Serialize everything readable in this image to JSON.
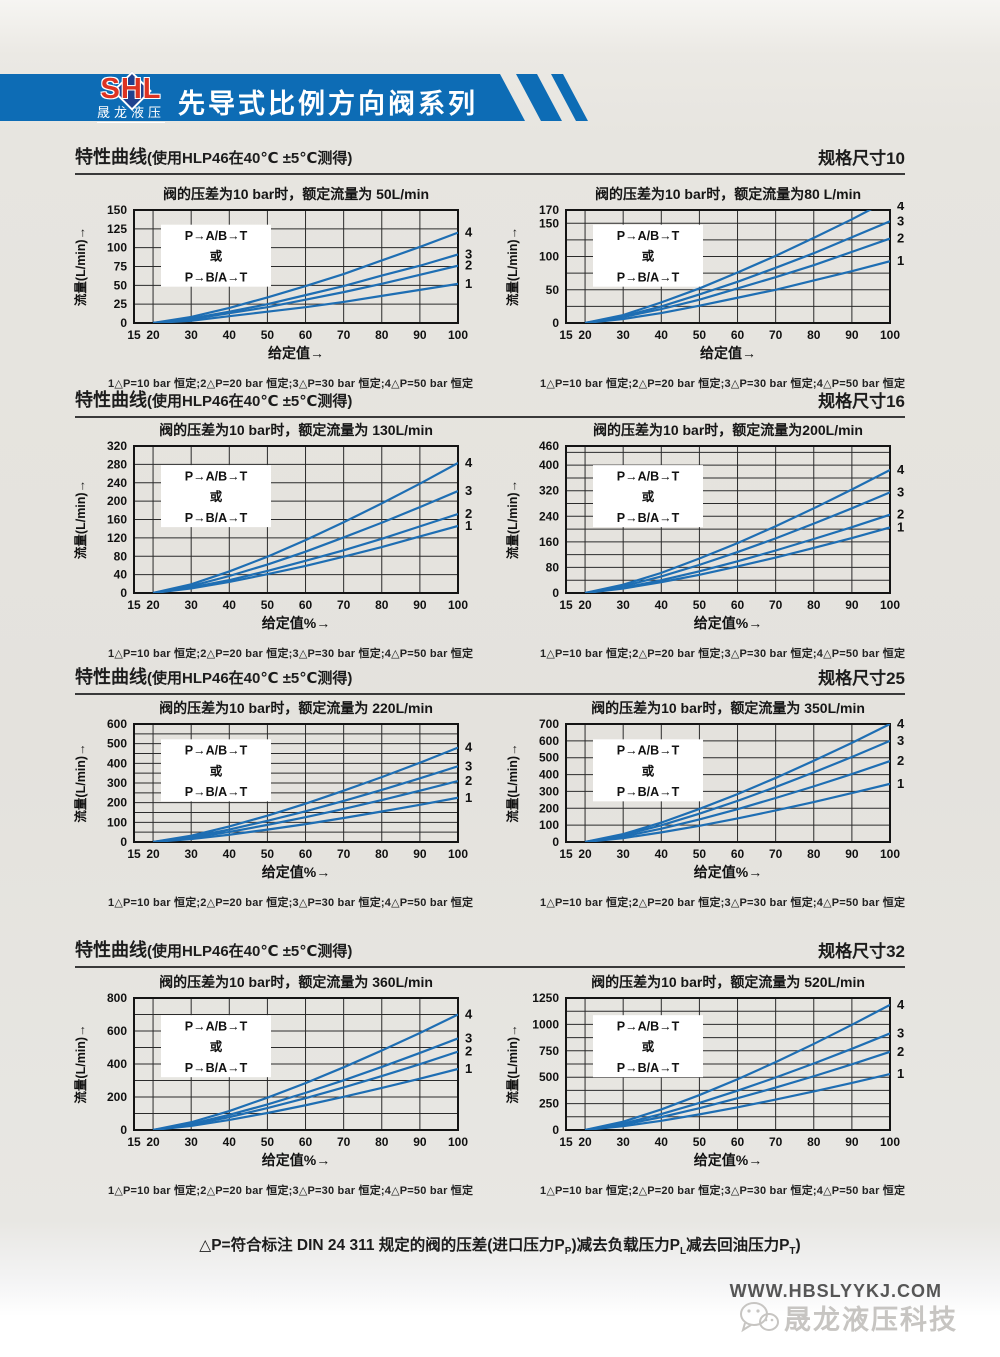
{
  "colors": {
    "banner_blue": "#0d6cb5",
    "logo_red": "#dd3322",
    "logo_diamond_blue": "#20418e",
    "curve_blue": "#1e6eb3",
    "ink": "#1c1c1c"
  },
  "header": {
    "logo_text": "SHL",
    "logo_subtext": "晟龙液压",
    "title": "先导式比例方向阀系列"
  },
  "sections": [
    {
      "heading": "特性曲线",
      "heading_detail": "(使用HLP46在40℃ ±5℃测得)",
      "size_label": "规格尺寸10"
    },
    {
      "heading": "特性曲线",
      "heading_detail": "(使用HLP46在40℃ ±5℃测得)",
      "size_label": "规格尺寸16"
    },
    {
      "heading": "特性曲线",
      "heading_detail": "(使用HLP46在40℃ ±5℃测得)",
      "size_label": "规格尺寸25"
    },
    {
      "heading": "特性曲线",
      "heading_detail": "(使用HLP46在40℃ ±5℃测得)",
      "size_label": "规格尺寸32"
    }
  ],
  "chart_data": [
    {
      "type": "line",
      "title": "阀的压差为10 bar时，额定流量为 50L/min",
      "xlabel": "给定值→",
      "ylabel": "流量(L/min)→",
      "xlim": [
        15,
        100
      ],
      "ylim": [
        0,
        150
      ],
      "x_ticks": [
        15,
        20,
        30,
        40,
        50,
        60,
        70,
        80,
        90,
        100
      ],
      "y_ticks": [
        0,
        25,
        50,
        75,
        100,
        125,
        150
      ],
      "y_grid": [
        0,
        25,
        50,
        75,
        100,
        125,
        150
      ],
      "grid": true,
      "legend": {
        "lines": [
          "P→A/B→T",
          "或",
          "P→B/A→T"
        ],
        "position": "upper-left"
      },
      "x": [
        20,
        30,
        40,
        50,
        60,
        70,
        80,
        90,
        100
      ],
      "series": [
        {
          "name": "1",
          "label": "△P=10 bar 恒定",
          "values": [
            0,
            3,
            9,
            15,
            21,
            28,
            36,
            44,
            52
          ]
        },
        {
          "name": "2",
          "label": "△P=20 bar 恒定",
          "values": [
            0,
            5,
            13,
            21,
            31,
            41,
            52,
            64,
            76
          ]
        },
        {
          "name": "3",
          "label": "△P=30 bar 恒定",
          "values": [
            0,
            6,
            15,
            25,
            37,
            49,
            63,
            76,
            91
          ]
        },
        {
          "name": "4",
          "label": "△P=50 bar 恒定",
          "values": [
            0,
            8,
            20,
            34,
            49,
            65,
            83,
            101,
            120
          ]
        }
      ],
      "caption": "1△P=10 bar 恒定;2△P=20 bar 恒定;3△P=30 bar 恒定;4△P=50 bar 恒定"
    },
    {
      "type": "line",
      "title": "阀的压差为10 bar时，额定流量为80 L/min",
      "xlabel": "给定值→",
      "ylabel": "流量(L/min)→",
      "xlim": [
        15,
        100
      ],
      "ylim": [
        0,
        170
      ],
      "x_ticks": [
        15,
        20,
        30,
        40,
        50,
        60,
        70,
        80,
        90,
        100
      ],
      "y_ticks": [
        0,
        50,
        100,
        150,
        170
      ],
      "y_grid": [
        0,
        25,
        50,
        75,
        100,
        125,
        150,
        170
      ],
      "grid": true,
      "legend": {
        "lines": [
          "P→A/B→T",
          "或",
          "P→B/A→T"
        ],
        "position": "upper-left"
      },
      "x": [
        20,
        30,
        40,
        50,
        60,
        70,
        80,
        90,
        100
      ],
      "series": [
        {
          "name": "1",
          "label": "△P=10 bar 恒定",
          "values": [
            0,
            6,
            15,
            26,
            38,
            50,
            64,
            78,
            93
          ]
        },
        {
          "name": "2",
          "label": "△P=20 bar 恒定",
          "values": [
            0,
            9,
            21,
            35,
            52,
            69,
            87,
            107,
            127
          ]
        },
        {
          "name": "3",
          "label": "△P=30 bar 恒定",
          "values": [
            0,
            10,
            25,
            43,
            62,
            83,
            105,
            129,
            153
          ]
        },
        {
          "name": "4",
          "label": "△P=50 bar 恒定",
          "values": [
            0,
            12,
            31,
            52,
            76,
            101,
            128,
            156,
            186
          ]
        }
      ],
      "caption": "1△P=10 bar 恒定;2△P=20 bar 恒定;3△P=30 bar 恒定;4△P=50 bar 恒定"
    },
    {
      "type": "line",
      "title": "阀的压差为10 bar时，额定流量为 130L/min",
      "xlabel": "给定值%→",
      "ylabel": "流量(L/min)→",
      "xlim": [
        15,
        100
      ],
      "ylim": [
        0,
        320
      ],
      "x_ticks": [
        15,
        20,
        30,
        40,
        50,
        60,
        70,
        80,
        90,
        100
      ],
      "y_ticks": [
        0,
        40,
        80,
        120,
        160,
        200,
        240,
        280,
        320
      ],
      "y_grid": [
        0,
        40,
        80,
        120,
        160,
        200,
        240,
        280,
        320
      ],
      "grid": true,
      "legend": {
        "lines": [
          "P→A/B→T",
          "或",
          "P→B/A→T"
        ],
        "position": "upper-left"
      },
      "x": [
        20,
        30,
        40,
        50,
        60,
        70,
        80,
        90,
        100
      ],
      "series": [
        {
          "name": "1",
          "label": "△P=10 bar 恒定",
          "values": [
            0,
            10,
            24,
            41,
            59,
            79,
            100,
            123,
            146
          ]
        },
        {
          "name": "2",
          "label": "△P=20 bar 恒定",
          "values": [
            0,
            12,
            28,
            48,
            70,
            93,
            118,
            145,
            172
          ]
        },
        {
          "name": "3",
          "label": "△P=30 bar 恒定",
          "values": [
            0,
            15,
            37,
            62,
            90,
            121,
            153,
            187,
            222
          ]
        },
        {
          "name": "4",
          "label": "△P=50 bar 恒定",
          "values": [
            0,
            19,
            47,
            79,
            115,
            154,
            195,
            238,
            283
          ]
        }
      ],
      "caption": "1△P=10 bar 恒定;2△P=20 bar 恒定;3△P=30 bar 恒定;4△P=50 bar 恒定"
    },
    {
      "type": "line",
      "title": "阀的压差为10 bar时，额定流量为200L/min",
      "xlabel": "给定值%→",
      "ylabel": "流量(L/min)→",
      "xlim": [
        15,
        100
      ],
      "ylim": [
        0,
        460
      ],
      "x_ticks": [
        15,
        20,
        30,
        40,
        50,
        60,
        70,
        80,
        90,
        100
      ],
      "y_ticks": [
        0,
        80,
        160,
        240,
        320,
        400,
        460
      ],
      "y_grid": [
        0,
        40,
        80,
        120,
        160,
        200,
        240,
        280,
        320,
        360,
        400,
        440,
        460
      ],
      "grid": true,
      "legend": {
        "lines": [
          "P→A/B→T",
          "或",
          "P→B/A→T"
        ],
        "position": "upper-left"
      },
      "x": [
        20,
        30,
        40,
        50,
        60,
        70,
        80,
        90,
        100
      ],
      "series": [
        {
          "name": "1",
          "label": "△P=10 bar 恒定",
          "values": [
            0,
            14,
            34,
            57,
            83,
            111,
            141,
            172,
            205
          ]
        },
        {
          "name": "2",
          "label": "△P=20 bar 恒定",
          "values": [
            0,
            16,
            40,
            68,
            99,
            133,
            169,
            206,
            245
          ]
        },
        {
          "name": "3",
          "label": "△P=30 bar 恒定",
          "values": [
            0,
            21,
            52,
            88,
            128,
            171,
            217,
            265,
            315
          ]
        },
        {
          "name": "4",
          "label": "△P=50 bar 恒定",
          "values": [
            0,
            26,
            63,
            108,
            156,
            209,
            265,
            324,
            385
          ]
        }
      ],
      "caption": "1△P=10 bar 恒定;2△P=20 bar 恒定;3△P=30 bar 恒定;4△P=50 bar 恒定"
    },
    {
      "type": "line",
      "title": "阀的压差为10 bar时，额定流量为 220L/min",
      "xlabel": "给定值%→",
      "ylabel": "流量(L/min)→",
      "xlim": [
        15,
        100
      ],
      "ylim": [
        0,
        600
      ],
      "x_ticks": [
        15,
        20,
        30,
        40,
        50,
        60,
        70,
        80,
        90,
        100
      ],
      "y_ticks": [
        0,
        100,
        200,
        300,
        400,
        500,
        600
      ],
      "y_grid": [
        0,
        50,
        100,
        150,
        200,
        250,
        300,
        350,
        400,
        450,
        500,
        550,
        600
      ],
      "grid": true,
      "legend": {
        "lines": [
          "P→A/B→T",
          "或",
          "P→B/A→T"
        ],
        "position": "upper-left"
      },
      "x": [
        20,
        30,
        40,
        50,
        60,
        70,
        80,
        90,
        100
      ],
      "series": [
        {
          "name": "1",
          "label": "△P=10 bar 恒定",
          "values": [
            0,
            15,
            37,
            63,
            91,
            122,
            155,
            189,
            225
          ]
        },
        {
          "name": "2",
          "label": "△P=20 bar 恒定",
          "values": [
            0,
            21,
            51,
            87,
            126,
            168,
            213,
            261,
            310
          ]
        },
        {
          "name": "3",
          "label": "△P=30 bar 恒定",
          "values": [
            0,
            26,
            63,
            108,
            156,
            209,
            265,
            324,
            385
          ]
        },
        {
          "name": "4",
          "label": "△P=50 bar 恒定",
          "values": [
            0,
            32,
            79,
            134,
            195,
            261,
            330,
            403,
            480
          ]
        }
      ],
      "caption": "1△P=10 bar 恒定;2△P=20 bar 恒定;3△P=30 bar 恒定;4△P=50 bar 恒定"
    },
    {
      "type": "line",
      "title": "阀的压差为10 bar时，额定流量为 350L/min",
      "xlabel": "给定值%→",
      "ylabel": "流量(L/min)→",
      "xlim": [
        15,
        100
      ],
      "ylim": [
        0,
        700
      ],
      "x_ticks": [
        15,
        20,
        30,
        40,
        50,
        60,
        70,
        80,
        90,
        100
      ],
      "y_ticks": [
        0,
        100,
        200,
        300,
        400,
        500,
        600,
        700
      ],
      "y_grid": [
        0,
        100,
        200,
        300,
        400,
        500,
        600,
        700
      ],
      "grid": true,
      "legend": {
        "lines": [
          "P→A/B→T",
          "或",
          "P→B/A→T"
        ],
        "position": "upper-left"
      },
      "x": [
        20,
        30,
        40,
        50,
        60,
        70,
        80,
        90,
        100
      ],
      "series": [
        {
          "name": "1",
          "label": "△P=10 bar 恒定",
          "values": [
            0,
            23,
            57,
            96,
            140,
            187,
            237,
            290,
            345
          ]
        },
        {
          "name": "2",
          "label": "△P=20 bar 恒定",
          "values": [
            0,
            32,
            79,
            134,
            195,
            261,
            330,
            403,
            480
          ]
        },
        {
          "name": "3",
          "label": "△P=30 bar 恒定",
          "values": [
            0,
            40,
            99,
            168,
            244,
            326,
            413,
            504,
            600
          ]
        },
        {
          "name": "4",
          "label": "△P=50 bar 恒定",
          "values": [
            0,
            47,
            115,
            196,
            284,
            380,
            482,
            588,
            700
          ]
        }
      ],
      "caption": "1△P=10 bar 恒定;2△P=20 bar 恒定;3△P=30 bar 恒定;4△P=50 bar 恒定"
    },
    {
      "type": "line",
      "title": "阀的压差为10 bar时，额定流量为 360L/min",
      "xlabel": "给定值%→",
      "ylabel": "流量(L/min)→",
      "xlim": [
        15,
        100
      ],
      "ylim": [
        0,
        800
      ],
      "x_ticks": [
        15,
        20,
        30,
        40,
        50,
        60,
        70,
        80,
        90,
        100
      ],
      "y_ticks": [
        0,
        200,
        400,
        600,
        800
      ],
      "y_grid": [
        0,
        100,
        200,
        300,
        400,
        500,
        600,
        700,
        800
      ],
      "grid": true,
      "legend": {
        "lines": [
          "P→A/B→T",
          "或",
          "P→B/A→T"
        ],
        "position": "upper-left"
      },
      "x": [
        20,
        30,
        40,
        50,
        60,
        70,
        80,
        90,
        100
      ],
      "series": [
        {
          "name": "1",
          "label": "△P=10 bar 恒定",
          "values": [
            0,
            25,
            61,
            103,
            150,
            201,
            255,
            311,
            370
          ]
        },
        {
          "name": "2",
          "label": "△P=20 bar 恒定",
          "values": [
            0,
            32,
            78,
            133,
            193,
            258,
            327,
            399,
            475
          ]
        },
        {
          "name": "3",
          "label": "△P=30 bar 恒定",
          "values": [
            0,
            37,
            92,
            155,
            225,
            301,
            382,
            467,
            555
          ]
        },
        {
          "name": "4",
          "label": "△P=50 bar 恒定",
          "values": [
            0,
            47,
            115,
            196,
            284,
            380,
            482,
            588,
            700
          ]
        }
      ],
      "caption": "1△P=10 bar 恒定;2△P=20 bar 恒定;3△P=30 bar 恒定;4△P=50 bar 恒定"
    },
    {
      "type": "line",
      "title": "阀的压差为10 bar时，额定流量为 520L/min",
      "xlabel": "给定值%→",
      "ylabel": "流量(L/min)→",
      "xlim": [
        15,
        100
      ],
      "ylim": [
        0,
        1250
      ],
      "x_ticks": [
        15,
        20,
        30,
        40,
        50,
        60,
        70,
        80,
        90,
        100
      ],
      "y_ticks": [
        0,
        250,
        500,
        750,
        1000,
        1250
      ],
      "y_grid": [
        0,
        125,
        250,
        375,
        500,
        625,
        750,
        875,
        1000,
        1125,
        1250
      ],
      "grid": true,
      "legend": {
        "lines": [
          "P→A/B→T",
          "或",
          "P→B/A→T"
        ],
        "position": "upper-left"
      },
      "x": [
        20,
        30,
        40,
        50,
        60,
        70,
        80,
        90,
        100
      ],
      "series": [
        {
          "name": "1",
          "label": "△P=10 bar 恒定",
          "values": [
            0,
            36,
            87,
            148,
            215,
            288,
            365,
            446,
            530
          ]
        },
        {
          "name": "2",
          "label": "△P=20 bar 恒定",
          "values": [
            0,
            50,
            122,
            207,
            301,
            402,
            509,
            622,
            740
          ]
        },
        {
          "name": "3",
          "label": "△P=30 bar 恒定",
          "values": [
            0,
            61,
            151,
            256,
            372,
            497,
            630,
            769,
            915
          ]
        },
        {
          "name": "4",
          "label": "△P=50 bar 恒定",
          "values": [
            0,
            79,
            195,
            331,
            481,
            643,
            815,
            996,
            1185
          ]
        }
      ],
      "caption": "1△P=10 bar 恒定;2△P=20 bar 恒定;3△P=30 bar 恒定;4△P=50 bar 恒定"
    }
  ],
  "note": {
    "p1": "△P=符合标注 DIN 24 311 规定的阀的压差(进口压力P",
    "s1": "P",
    "p2": ")减去负载压力P",
    "s2": "L",
    "p3": "减去回油压力P",
    "s3": "T",
    "p4": ")"
  },
  "footer": {
    "url": "WWW.HBSLYYKJ.COM",
    "watermark": "晟龙液压科技"
  }
}
